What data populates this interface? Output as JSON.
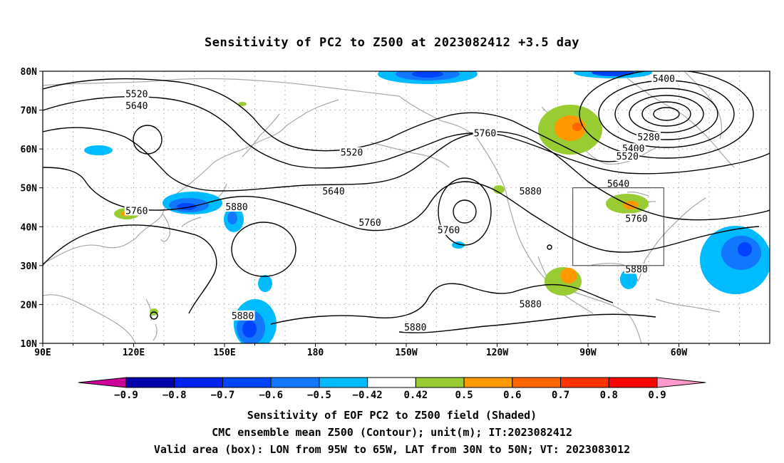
{
  "title": "Sensitivity of PC2 to Z500 at 2023082412 +3.5 day",
  "lat_labels": [
    "80N",
    "70N",
    "60N",
    "50N",
    "40N",
    "30N",
    "20N",
    "10N"
  ],
  "lon_labels": [
    "90E",
    "120E",
    "150E",
    "180",
    "150W",
    "120W",
    "90W",
    "60W"
  ],
  "contour_labels": [
    {
      "text": "5520",
      "lon": 121,
      "lat": 74
    },
    {
      "text": "5640",
      "lon": 121,
      "lat": 71
    },
    {
      "text": "5520",
      "lon": 192,
      "lat": 59
    },
    {
      "text": "5640",
      "lon": 186,
      "lat": 49
    },
    {
      "text": "5760",
      "lon": 236,
      "lat": 64
    },
    {
      "text": "5760",
      "lon": 121,
      "lat": 44
    },
    {
      "text": "5880",
      "lon": 154,
      "lat": 45
    },
    {
      "text": "5760",
      "lon": 198,
      "lat": 41
    },
    {
      "text": "5760",
      "lon": 224,
      "lat": 39
    },
    {
      "text": "5880",
      "lon": 251,
      "lat": 49
    },
    {
      "text": "5400",
      "lon": 295,
      "lat": 78
    },
    {
      "text": "5280",
      "lon": 290,
      "lat": 63
    },
    {
      "text": "5400",
      "lon": 285,
      "lat": 60
    },
    {
      "text": "5520",
      "lon": 283,
      "lat": 58
    },
    {
      "text": "5640",
      "lon": 280,
      "lat": 51
    },
    {
      "text": "5760",
      "lon": 286,
      "lat": 42
    },
    {
      "text": "5880",
      "lon": 286,
      "lat": 29
    },
    {
      "text": "5880",
      "lon": 251,
      "lat": 20
    },
    {
      "text": "5880",
      "lon": 156,
      "lat": 17
    },
    {
      "text": "5880",
      "lon": 213,
      "lat": 14
    }
  ],
  "colorbar": {
    "labels": [
      "−0.9",
      "−0.8",
      "−0.7",
      "−0.6",
      "−0.5",
      "−0.42",
      "0.42",
      "0.5",
      "0.6",
      "0.7",
      "0.8",
      "0.9"
    ],
    "colors": [
      "#0000aa",
      "#0022ee",
      "#0044ff",
      "#1177ff",
      "#00bbff",
      "#ffffff",
      "#99cc33",
      "#ff9900",
      "#ff6600",
      "#ff3300",
      "#ff0000"
    ],
    "left_color": "#cc0099",
    "right_color": "#ff99cc"
  },
  "valid_box": {
    "lon_min": 265,
    "lon_max": 295,
    "lat_min": 30,
    "lat_max": 50
  },
  "footer": {
    "line1": "Sensitivity of EOF PC2 to Z500 field (Shaded)",
    "line2": "CMC ensemble mean Z500 (Contour); unit(m); IT:2023082412",
    "line3": "Valid area (box): LON from 95W to 65W, LAT from 30N to 50N; VT: 2023083012"
  }
}
